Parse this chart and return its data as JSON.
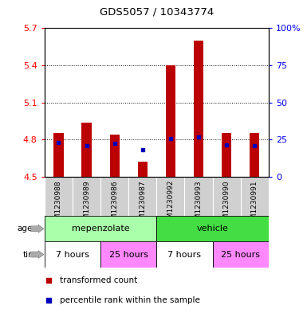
{
  "title": "GDS5057 / 10343774",
  "samples": [
    "GSM1230988",
    "GSM1230989",
    "GSM1230986",
    "GSM1230987",
    "GSM1230992",
    "GSM1230993",
    "GSM1230990",
    "GSM1230991"
  ],
  "bar_bottoms": [
    4.5,
    4.5,
    4.5,
    4.5,
    4.5,
    4.5,
    4.5,
    4.5
  ],
  "bar_tops": [
    4.855,
    4.935,
    4.843,
    4.625,
    5.4,
    5.6,
    4.855,
    4.855
  ],
  "percentile_values": [
    4.775,
    4.748,
    4.773,
    4.718,
    4.807,
    4.82,
    4.76,
    4.75
  ],
  "ylim_left": [
    4.5,
    5.7
  ],
  "ylim_right": [
    0,
    100
  ],
  "yticks_left": [
    4.5,
    4.8,
    5.1,
    5.4,
    5.7
  ],
  "yticks_left_labels": [
    "4.5",
    "4.8",
    "5.1",
    "5.4",
    "5.7"
  ],
  "yticks_right": [
    0,
    25,
    50,
    75,
    100
  ],
  "yticks_right_labels": [
    "0",
    "25",
    "50",
    "75",
    "100%"
  ],
  "bar_color": "#bb0000",
  "percentile_color": "#0000bb",
  "agent_groups": [
    {
      "label": "mepenzolate",
      "start": 0,
      "end": 4,
      "color": "#aaffaa"
    },
    {
      "label": "vehicle",
      "start": 4,
      "end": 8,
      "color": "#44dd44"
    }
  ],
  "time_groups": [
    {
      "label": "7 hours",
      "start": 0,
      "end": 2,
      "color": "#ffffff"
    },
    {
      "label": "25 hours",
      "start": 2,
      "end": 4,
      "color": "#ff88ff"
    },
    {
      "label": "7 hours",
      "start": 4,
      "end": 6,
      "color": "#ffffff"
    },
    {
      "label": "25 hours",
      "start": 6,
      "end": 8,
      "color": "#ff88ff"
    }
  ],
  "legend_items": [
    {
      "label": "transformed count",
      "color": "#bb0000"
    },
    {
      "label": "percentile rank within the sample",
      "color": "#0000bb"
    }
  ],
  "sample_bg_color": "#d0d0d0",
  "plot_bg_color": "#ffffff",
  "bar_width": 0.35
}
